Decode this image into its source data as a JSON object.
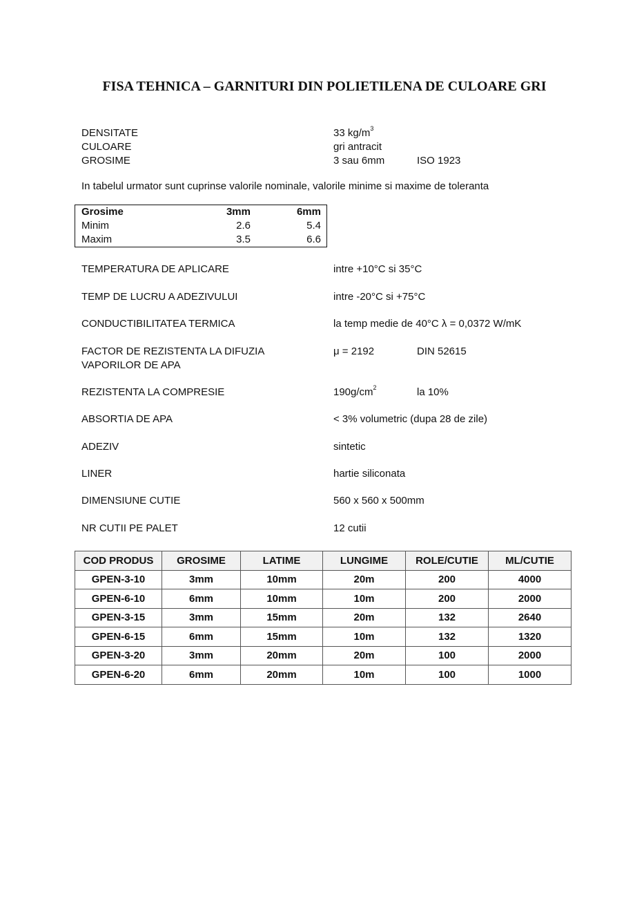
{
  "title": "FISA TEHNICA – GARNITURI DIN POLIETILENA DE CULOARE GRI",
  "basic": [
    {
      "label": "DENSITATE",
      "value": "33 kg/m",
      "sup": "3",
      "extra": ""
    },
    {
      "label": "CULOARE",
      "value": "gri antracit",
      "sup": "",
      "extra": ""
    },
    {
      "label": "GROSIME",
      "value": "3 sau 6mm",
      "sup": "",
      "extra": "ISO 1923"
    }
  ],
  "intro": "In tabelul urmator sunt cuprinse valorile nominale, valorile minime si maxime de toleranta",
  "tolerance_table": {
    "headers": [
      "Grosime",
      "3mm",
      "6mm"
    ],
    "rows": [
      [
        "Minim",
        "2.6",
        "5.4"
      ],
      [
        "Maxim",
        "3.5",
        "6.6"
      ]
    ]
  },
  "properties": [
    {
      "label": "TEMPERATURA DE APLICARE",
      "label2": "",
      "value": "intre +10°C si 35°C",
      "sup": "",
      "extra": ""
    },
    {
      "label": "TEMP DE LUCRU A ADEZIVULUI",
      "label2": "",
      "value": "intre -20°C si +75°C",
      "sup": "",
      "extra": ""
    },
    {
      "label": "CONDUCTIBILITATEA TERMICA",
      "label2": "",
      "value": "la temp medie de 40°C λ = 0,0372 W/mK",
      "sup": "",
      "extra": ""
    },
    {
      "label": "FACTOR DE REZISTENTA LA DIFUZIA",
      "label2": "VAPORILOR DE APA",
      "value": "μ = 2192",
      "sup": "",
      "extra": "DIN 52615"
    },
    {
      "label": "REZISTENTA LA COMPRESIE",
      "label2": "",
      "value": "190g/cm",
      "sup": "2",
      "extra": "la 10%"
    },
    {
      "label": "ABSORTIA DE APA",
      "label2": "",
      "value": "< 3% volumetric (dupa 28 de zile)",
      "sup": "",
      "extra": ""
    },
    {
      "label": "ADEZIV",
      "label2": "",
      "value": "sintetic",
      "sup": "",
      "extra": ""
    },
    {
      "label": "LINER",
      "label2": "",
      "value": "hartie siliconata",
      "sup": "",
      "extra": ""
    },
    {
      "label": "DIMENSIUNE CUTIE",
      "label2": "",
      "value": "560 x 560 x 500mm",
      "sup": "",
      "extra": ""
    },
    {
      "label": "NR CUTII PE PALET",
      "label2": "",
      "value": "12 cutii",
      "sup": "",
      "extra": ""
    }
  ],
  "product_table": {
    "headers": [
      "COD PRODUS",
      "GROSIME",
      "LATIME",
      "LUNGIME",
      "ROLE/CUTIE",
      "ML/CUTIE"
    ],
    "rows": [
      [
        "GPEN-3-10",
        "3mm",
        "10mm",
        "20m",
        "200",
        "4000"
      ],
      [
        "GPEN-6-10",
        "6mm",
        "10mm",
        "10m",
        "200",
        "2000"
      ],
      [
        "GPEN-3-15",
        "3mm",
        "15mm",
        "20m",
        "132",
        "2640"
      ],
      [
        "GPEN-6-15",
        "6mm",
        "15mm",
        "10m",
        "132",
        "1320"
      ],
      [
        "GPEN-3-20",
        "3mm",
        "20mm",
        "20m",
        "100",
        "2000"
      ],
      [
        "GPEN-6-20",
        "6mm",
        "20mm",
        "10m",
        "100",
        "1000"
      ]
    ]
  }
}
